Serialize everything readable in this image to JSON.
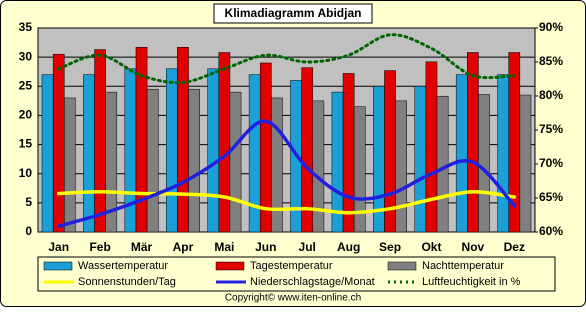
{
  "chart_data": {
    "type": "bar",
    "title": "Klimadiagramm Abidjan",
    "categories": [
      "Jan",
      "Feb",
      "Mär",
      "Apr",
      "Mai",
      "Jun",
      "Jul",
      "Aug",
      "Sep",
      "Okt",
      "Nov",
      "Dez"
    ],
    "series": [
      {
        "name": "Wassertemperatur",
        "type": "bar",
        "color": "#1a9fd6",
        "values": [
          27,
          27,
          28,
          28,
          28,
          27,
          26,
          24,
          25,
          25,
          27,
          27
        ]
      },
      {
        "name": "Tagestemperatur",
        "type": "bar",
        "color": "#e00000",
        "values": [
          30.5,
          31.3,
          31.7,
          31.7,
          30.8,
          29,
          28.2,
          27.2,
          27.7,
          29.2,
          30.8,
          30.8
        ]
      },
      {
        "name": "Nachttemperatur",
        "type": "bar",
        "color": "#808080",
        "values": [
          23,
          24,
          24.5,
          24.5,
          24,
          23,
          22.5,
          21.5,
          22.5,
          23.3,
          23.6,
          23.5
        ]
      },
      {
        "name": "Sonnenstunden/Tag",
        "type": "line",
        "color": "#ffff00",
        "values": [
          6.6,
          6.9,
          6.6,
          6.5,
          6,
          4,
          4,
          3.3,
          4,
          5.6,
          6.9,
          6
        ]
      },
      {
        "name": "Niederschlagstage/Monat",
        "type": "line",
        "color": "#2020e0",
        "values": [
          1,
          3,
          5.5,
          8.5,
          13,
          19,
          11,
          6,
          6.5,
          10,
          12,
          4.5
        ]
      },
      {
        "name": "Luftfeuchtigkeit in %",
        "type": "dotted",
        "color": "#006400",
        "axis": "y2",
        "values": [
          84,
          86,
          83,
          82,
          84,
          86,
          85,
          86,
          89,
          87,
          83,
          83
        ]
      }
    ],
    "ylim": [
      0,
      35
    ],
    "yticks": [
      0,
      5,
      10,
      15,
      20,
      25,
      30,
      35
    ],
    "y2lim": [
      60,
      90
    ],
    "y2ticks": [
      {
        "value": 60,
        "label": "60%"
      },
      {
        "value": 65,
        "label": "65%"
      },
      {
        "value": 70,
        "label": "70%"
      },
      {
        "value": 75,
        "label": "75%"
      },
      {
        "value": 80,
        "label": "80%"
      },
      {
        "value": 85,
        "label": "85%"
      },
      {
        "value": 90,
        "label": "90%"
      }
    ],
    "grid": true,
    "plot_background": "#c0c0c0",
    "footer": "Copyright© www.iten-online.ch"
  }
}
